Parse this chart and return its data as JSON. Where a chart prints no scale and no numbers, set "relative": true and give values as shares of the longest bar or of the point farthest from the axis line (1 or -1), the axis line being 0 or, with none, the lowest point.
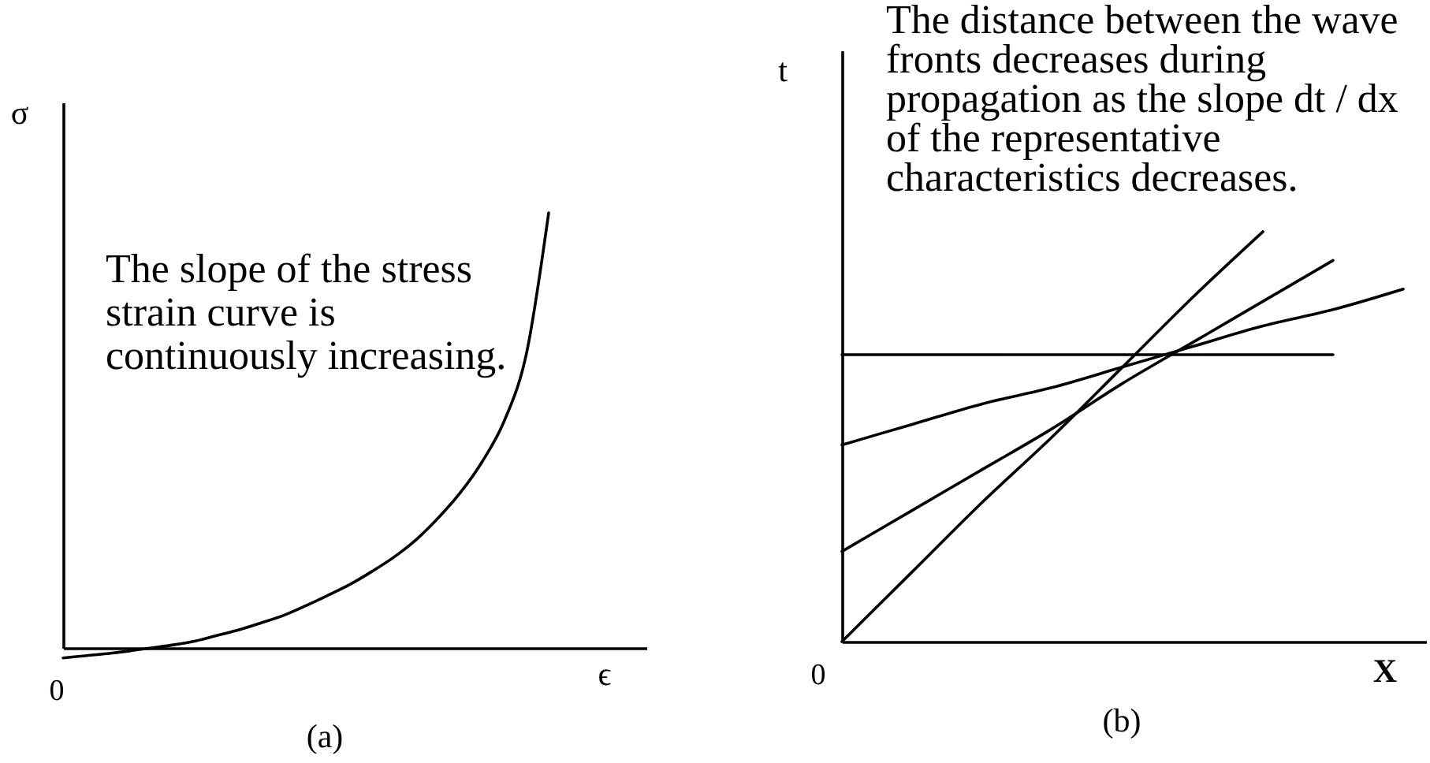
{
  "chart_data": [
    {
      "type": "line",
      "title": "(a)",
      "xlabel": "ϵ",
      "ylabel": "σ",
      "relative": true,
      "categories": [
        null,
        null,
        null,
        null,
        null,
        null,
        null,
        null,
        null,
        null,
        null,
        null,
        null,
        null,
        null,
        null,
        null,
        null,
        null,
        null,
        null,
        null,
        null
      ],
      "series": [
        {
          "color": "#000000",
          "values": [
            -0.023,
            -0.018,
            -0.013,
            -0.007,
            0,
            0.007,
            0.016,
            0.029,
            0.042,
            0.058,
            0.075,
            0.097,
            0.121,
            0.146,
            0.176,
            0.209,
            0.249,
            0.299,
            0.357,
            0.429,
            0.523,
            0.678,
            1
          ]
        }
      ],
      "annotations": [
        "0",
        "The slope of the stress strain curve is continuously increasing."
      ]
    },
    {
      "type": "line",
      "title": "(b)",
      "xlabel": "X",
      "ylabel": "t",
      "relative": true,
      "categories": [
        null,
        null,
        null,
        null,
        null,
        null,
        null,
        null,
        null
      ],
      "series": [
        {
          "color": "#000000",
          "values": [
            0.7,
            0.7,
            0.7,
            0.7,
            0.7,
            0.7,
            0.7,
            0.7,
            null
          ]
        },
        {
          "color": "#000000",
          "values": [
            0.48,
            0.53,
            0.58,
            0.62,
            0.67,
            0.72,
            0.77,
            0.81,
            0.86
          ]
        },
        {
          "color": "#000000",
          "values": [
            0.22,
            0.32,
            0.42,
            0.52,
            0.63,
            0.73,
            0.83,
            0.93,
            null
          ]
        },
        {
          "color": "#000000",
          "values": [
            0,
            0.17,
            0.34,
            0.5,
            0.67,
            0.84,
            1,
            null,
            null
          ]
        }
      ],
      "annotations": [
        "0",
        "The distance between the wave fronts decreases during propagation as the slope dt / dx of the representative characteristics decreases."
      ]
    }
  ]
}
